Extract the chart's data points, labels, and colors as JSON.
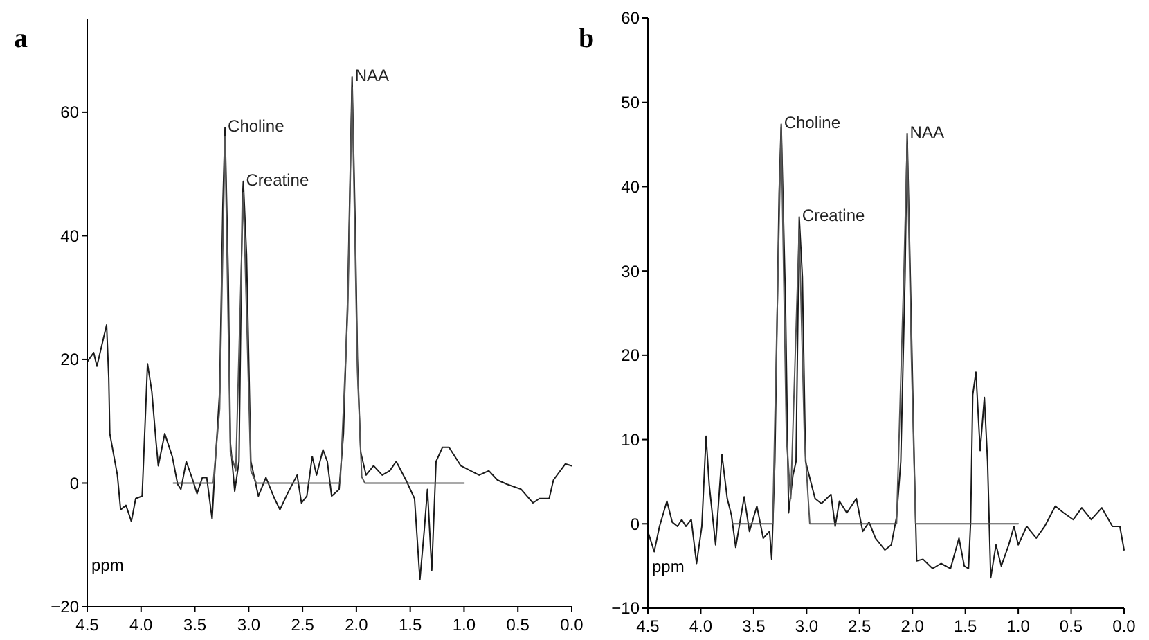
{
  "chart_data": [
    {
      "type": "line",
      "title": "a",
      "xlabel": "ppm",
      "xlim": [
        4.5,
        0
      ],
      "ylim": [
        -20,
        75
      ],
      "xticks": [
        {
          "value": 4.5,
          "label": "4.5"
        },
        {
          "value": 4,
          "label": "4.0"
        },
        {
          "value": 3.5,
          "label": "3.5"
        },
        {
          "value": 3,
          "label": "3.0"
        },
        {
          "value": 2.5,
          "label": "2.5"
        },
        {
          "value": 2,
          "label": "2.0"
        },
        {
          "value": 1.5,
          "label": "1.5"
        },
        {
          "value": 1,
          "label": "1.0"
        },
        {
          "value": 0.5,
          "label": "0.5"
        },
        {
          "value": 0,
          "label": "0.0"
        }
      ],
      "yticks": [
        {
          "value": -20,
          "label": "−20"
        },
        0,
        20,
        40,
        60
      ],
      "annotations": [
        {
          "text": "Choline",
          "x": 3.22,
          "y": 57.5
        },
        {
          "text": "Creatine",
          "x": 3.05,
          "y": 48.8
        },
        {
          "text": "NAA",
          "x": 2.04,
          "y": 65.7
        }
      ],
      "series": [
        {
          "color": "#1a1a1a",
          "x": [
            4.5,
            4.44,
            4.41,
            4.32,
            4.3,
            4.29,
            4.22,
            4.19,
            4.14,
            4.09,
            4.05,
            3.99,
            3.94,
            3.9,
            3.86,
            3.84,
            3.78,
            3.71,
            3.66,
            3.63,
            3.58,
            3.52,
            3.48,
            3.43,
            3.39,
            3.34,
            3.31,
            3.27,
            3.24,
            3.22,
            3.19,
            3.17,
            3.13,
            3.09,
            3.06,
            3.05,
            3.02,
            2.98,
            2.91,
            2.84,
            2.76,
            2.71,
            2.64,
            2.55,
            2.51,
            2.46,
            2.41,
            2.37,
            2.31,
            2.27,
            2.23,
            2.16,
            2.12,
            2.08,
            2.04,
            2.01,
            1.99,
            1.96,
            1.91,
            1.84,
            1.76,
            1.69,
            1.63,
            1.54,
            1.46,
            1.41,
            1.37,
            1.34,
            1.3,
            1.26,
            1.2,
            1.14,
            1.03,
            0.94,
            0.86,
            0.77,
            0.69,
            0.6,
            0.47,
            0.36,
            0.3,
            0.21,
            0.17,
            0.06,
            0
          ],
          "values": [
            19.6,
            21.1,
            18.9,
            25.6,
            17,
            8,
            1.3,
            -4.3,
            -3.6,
            -6.2,
            -2.5,
            -2.1,
            19.3,
            14.8,
            6.5,
            2.8,
            8,
            4.3,
            -0.2,
            -1,
            3.5,
            0.5,
            -1.7,
            0.9,
            0.9,
            -5.8,
            3.5,
            14.8,
            45,
            57.5,
            33.5,
            6.5,
            -1.3,
            3.5,
            45,
            48.8,
            37,
            3.5,
            -2.1,
            0.9,
            -2.5,
            -4.3,
            -1.7,
            1.3,
            -3.2,
            -2.1,
            4.3,
            1.3,
            5.4,
            3.5,
            -2.1,
            -1,
            8,
            30.5,
            65.7,
            41,
            20,
            5,
            1.3,
            2.8,
            1.3,
            2,
            3.5,
            0.5,
            -2.5,
            -15.6,
            -7.7,
            -1,
            -14.1,
            3.5,
            5.8,
            5.8,
            2.8,
            2,
            1.3,
            2,
            0.5,
            -0.2,
            -1,
            -3.2,
            -2.5,
            -2.5,
            0.5,
            3.1,
            2.8
          ]
        },
        {
          "color": "#555555",
          "x": [
            3.7,
            3.33,
            3.27,
            3.22,
            3.17,
            3.12,
            3.05,
            2.98,
            2.93,
            2.15,
            2.08,
            2.04,
            1.99,
            1.95,
            1.92,
            1
          ],
          "values": [
            0,
            0,
            12,
            56,
            5,
            2,
            47,
            2,
            0,
            0,
            28,
            64,
            18,
            1,
            0,
            0
          ]
        }
      ]
    },
    {
      "type": "line",
      "title": "b",
      "xlabel": "ppm",
      "xlim": [
        4.5,
        0
      ],
      "ylim": [
        -10,
        60
      ],
      "xticks": [
        {
          "value": 4.5,
          "label": "4.5"
        },
        {
          "value": 4,
          "label": "4.0"
        },
        {
          "value": 3.5,
          "label": "3.5"
        },
        {
          "value": 3,
          "label": "3.0"
        },
        {
          "value": 2.5,
          "label": "2.5"
        },
        {
          "value": 2,
          "label": "2.0"
        },
        {
          "value": 1.5,
          "label": "1.5"
        },
        {
          "value": 1,
          "label": "1.0"
        },
        {
          "value": 0.5,
          "label": "0.5"
        },
        {
          "value": 0,
          "label": "0.0"
        }
      ],
      "yticks": [
        {
          "value": -10,
          "label": "−10"
        },
        0,
        10,
        20,
        30,
        40,
        50,
        60
      ],
      "annotations": [
        {
          "text": "Choline",
          "x": 3.24,
          "y": 47.4
        },
        {
          "text": "Creatine",
          "x": 3.07,
          "y": 36.4
        },
        {
          "text": "NAA",
          "x": 2.05,
          "y": 46.3
        }
      ],
      "series": [
        {
          "color": "#1a1a1a",
          "x": [
            4.5,
            4.44,
            4.39,
            4.32,
            4.27,
            4.22,
            4.18,
            4.14,
            4.09,
            4.04,
            3.99,
            3.95,
            3.92,
            3.86,
            3.8,
            3.75,
            3.71,
            3.67,
            3.59,
            3.54,
            3.47,
            3.41,
            3.35,
            3.33,
            3.3,
            3.26,
            3.24,
            3.2,
            3.17,
            3.13,
            3.1,
            3.07,
            3.04,
            3.01,
            2.92,
            2.86,
            2.77,
            2.73,
            2.69,
            2.62,
            2.53,
            2.47,
            2.41,
            2.35,
            2.26,
            2.2,
            2.15,
            2.11,
            2.07,
            2.05,
            2.02,
            1.98,
            1.96,
            1.9,
            1.81,
            1.73,
            1.64,
            1.56,
            1.51,
            1.47,
            1.45,
            1.43,
            1.4,
            1.36,
            1.32,
            1.29,
            1.26,
            1.21,
            1.16,
            1.09,
            1.04,
            1,
            0.92,
            0.83,
            0.75,
            0.65,
            0.57,
            0.48,
            0.4,
            0.31,
            0.21,
            0.11,
            0.04,
            0
          ],
          "values": [
            -0.9,
            -3.3,
            -0.3,
            2.7,
            0.2,
            -0.3,
            0.5,
            -0.3,
            0.5,
            -4.7,
            -0.3,
            10.4,
            4.6,
            -2.5,
            8.2,
            3,
            1,
            -2.8,
            3.2,
            -0.9,
            2.1,
            -1.7,
            -0.9,
            -4.2,
            7.4,
            39.2,
            47.4,
            26.5,
            1.3,
            5.7,
            7.4,
            36.4,
            29.3,
            7.4,
            3,
            2.4,
            3.5,
            -0.3,
            2.7,
            1.3,
            3,
            -0.9,
            0.2,
            -1.7,
            -3.1,
            -2.5,
            0.8,
            7.4,
            29.3,
            46.3,
            29.3,
            5.7,
            -4.4,
            -4.2,
            -5.3,
            -4.7,
            -5.3,
            -1.7,
            -5,
            -5.3,
            0.2,
            15.3,
            18,
            8.7,
            15,
            7.4,
            -6.4,
            -2.5,
            -5,
            -2.5,
            -0.3,
            -2.5,
            -0.3,
            -1.7,
            -0.3,
            2.1,
            1.3,
            0.5,
            1.9,
            0.5,
            1.9,
            -0.3,
            -0.3,
            -3.1
          ]
        },
        {
          "color": "#555555",
          "x": [
            3.7,
            3.32,
            3.27,
            3.24,
            3.19,
            3.15,
            3.07,
            3.02,
            2.97,
            2.15,
            2.08,
            2.05,
            2.01,
            1.97,
            1
          ],
          "values": [
            0,
            0,
            30,
            47,
            10,
            3,
            35,
            10,
            0,
            0,
            30,
            45,
            20,
            0,
            0
          ]
        }
      ]
    }
  ]
}
